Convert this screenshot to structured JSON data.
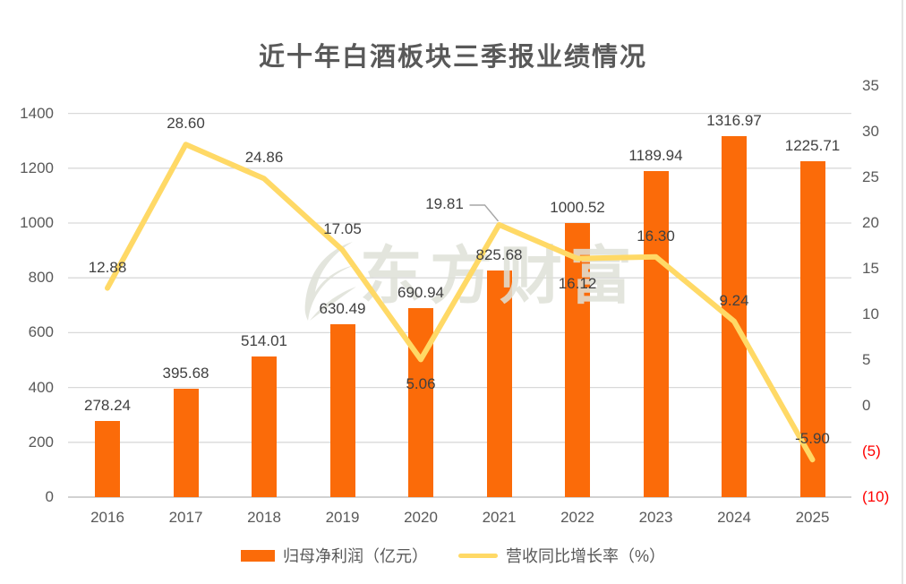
{
  "title": "近十年白酒板块三季报业绩情况",
  "watermark": {
    "text": "东方财富"
  },
  "legend": [
    {
      "type": "bar",
      "label": "归母净利润（亿元）"
    },
    {
      "type": "line",
      "label": "营收同比增长率（%）"
    }
  ],
  "colors": {
    "bar": "#fb6b09",
    "line": "#ffd966",
    "title": "#595959",
    "axis_label": "#595959",
    "negative_axis_label": "#ff0000",
    "data_label": "#404040",
    "gridline": "#d9d9d9",
    "axis_line": "#d2d2d2",
    "leader_line": "#a6a6a6"
  },
  "chart_data": {
    "type": "bar",
    "title": "近十年白酒板块三季报业绩情况",
    "categories": [
      "2016",
      "2017",
      "2018",
      "2019",
      "2020",
      "2021",
      "2022",
      "2023",
      "2024",
      "2025"
    ],
    "series": [
      {
        "name": "归母净利润（亿元）",
        "type": "bar",
        "axis": "left",
        "values": [
          278.24,
          395.68,
          514.01,
          630.49,
          690.94,
          825.68,
          1000.52,
          1189.94,
          1316.97,
          1225.71
        ]
      },
      {
        "name": "营收同比增长率（%）",
        "type": "line",
        "axis": "right",
        "values": [
          12.88,
          28.6,
          24.86,
          17.05,
          5.06,
          19.81,
          16.12,
          16.3,
          9.24,
          -5.9
        ],
        "label_positions": [
          "above",
          "above",
          "above",
          "above",
          "below",
          "callout",
          "below",
          "above",
          "above",
          "above"
        ]
      }
    ],
    "left_axis": {
      "min": 0,
      "max": 1500,
      "tick_step": 200,
      "ticks": [
        0,
        200,
        400,
        600,
        800,
        1000,
        1200,
        1400
      ]
    },
    "right_axis": {
      "min": -10,
      "max": 35,
      "tick_step": 5,
      "ticks": [
        35,
        30,
        25,
        20,
        15,
        10,
        5,
        0,
        -5,
        -10
      ],
      "negative_format": "parentheses"
    },
    "grid": true,
    "legend_position": "bottom",
    "data_labels": true
  }
}
